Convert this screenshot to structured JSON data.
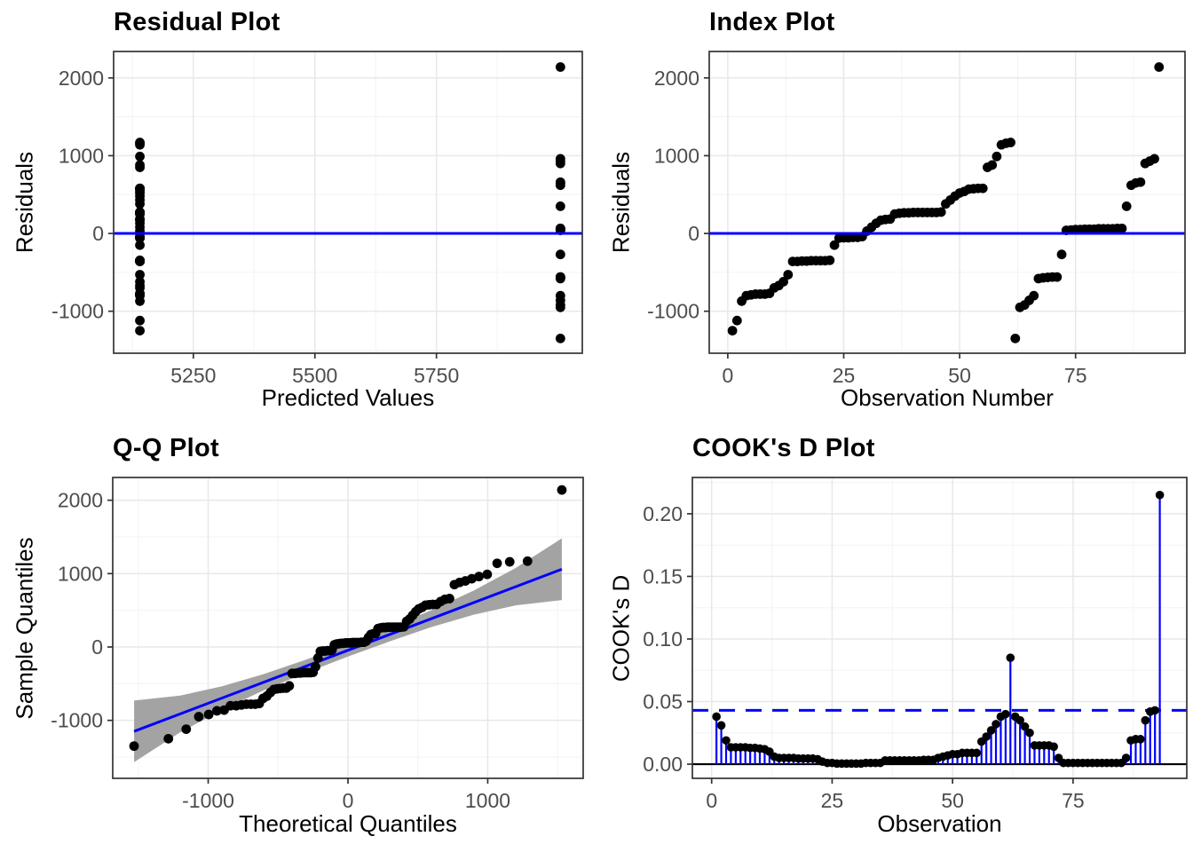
{
  "n_observations": 93,
  "colors": {
    "accent_blue": "#0000ff",
    "point_black": "#000000",
    "band_gray": "#a3a3a3",
    "grid_major": "#e8e8e8",
    "grid_minor": "#f4f4f4",
    "panel_border": "#333333",
    "tick_label": "#4d4d4d",
    "title_text": "#000000"
  },
  "residuals": [
    -1250,
    -1120,
    -870,
    -800,
    -790,
    -780,
    -780,
    -780,
    -770,
    -700,
    -670,
    -620,
    -530,
    -360,
    -360,
    -355,
    -355,
    -350,
    -350,
    -350,
    -350,
    -345,
    -150,
    -60,
    -55,
    -55,
    -50,
    -50,
    -40,
    30,
    80,
    130,
    170,
    180,
    185,
    250,
    260,
    265,
    265,
    270,
    270,
    270,
    270,
    270,
    270,
    275,
    380,
    430,
    480,
    520,
    540,
    570,
    575,
    580,
    580,
    850,
    880,
    990,
    1140,
    1160,
    1170,
    -1350,
    -950,
    -920,
    -860,
    -800,
    -580,
    -570,
    -565,
    -560,
    -560,
    -270,
    40,
    45,
    50,
    50,
    55,
    55,
    55,
    60,
    60,
    60,
    60,
    65,
    65,
    350,
    620,
    650,
    660,
    900,
    930,
    960,
    2140
  ],
  "cooks_d": [
    0.038,
    0.031,
    0.019,
    0.0135,
    0.0135,
    0.0135,
    0.0135,
    0.013,
    0.013,
    0.0125,
    0.012,
    0.01,
    0.006,
    0.005,
    0.005,
    0.005,
    0.005,
    0.0045,
    0.0045,
    0.0045,
    0.0045,
    0.004,
    0.002,
    0.001,
    0.001,
    0.0005,
    0.0005,
    0.0005,
    0.0005,
    0.0005,
    0.0005,
    0.001,
    0.001,
    0.001,
    0.001,
    0.003,
    0.003,
    0.003,
    0.003,
    0.003,
    0.003,
    0.003,
    0.003,
    0.0035,
    0.0035,
    0.0035,
    0.005,
    0.006,
    0.007,
    0.008,
    0.008,
    0.009,
    0.009,
    0.009,
    0.009,
    0.018,
    0.022,
    0.027,
    0.032,
    0.038,
    0.04,
    0.085,
    0.038,
    0.035,
    0.03,
    0.025,
    0.015,
    0.015,
    0.015,
    0.015,
    0.014,
    0.005,
    0.001,
    0.001,
    0.001,
    0.001,
    0.001,
    0.001,
    0.001,
    0.001,
    0.001,
    0.001,
    0.001,
    0.001,
    0.001,
    0.005,
    0.019,
    0.02,
    0.02,
    0.035,
    0.042,
    0.043,
    0.215
  ],
  "chart_data": [
    {
      "id": "residual_plot",
      "type": "scatter_fitted",
      "title": "Residual Plot",
      "xlabel": "Predicted Values",
      "ylabel": "Residuals",
      "xlim": [
        5086,
        6050
      ],
      "ylim": [
        -1540,
        2340
      ],
      "xticks": [
        5250,
        5500,
        5750
      ],
      "xtick_labels": [
        "5250",
        "5500",
        "5750"
      ],
      "yticks": [
        -1000,
        0,
        1000,
        2000
      ],
      "ytick_labels": [
        "-1000",
        "0",
        "1000",
        "2000"
      ],
      "xminor": [
        5125,
        5375,
        5625,
        5875
      ],
      "yminor": [
        -1500,
        -500,
        500,
        1500
      ],
      "hline": {
        "y": 0,
        "color": "#0000ff"
      },
      "fitted_groups": [
        {
          "x": 5140,
          "count": 61
        },
        {
          "x": 6005,
          "count": 32
        }
      ],
      "source": "residuals",
      "grid": true,
      "legend": "none"
    },
    {
      "id": "index_plot",
      "type": "index_scatter",
      "title": "Index Plot",
      "xlabel": "Observation Number",
      "ylabel": "Residuals",
      "xlim": [
        -4,
        98.6
      ],
      "ylim": [
        -1540,
        2340
      ],
      "xticks": [
        0,
        25,
        50,
        75
      ],
      "xtick_labels": [
        "0",
        "25",
        "50",
        "75"
      ],
      "yticks": [
        -1000,
        0,
        1000,
        2000
      ],
      "ytick_labels": [
        "-1000",
        "0",
        "1000",
        "2000"
      ],
      "xminor": [
        12.5,
        37.5,
        62.5,
        87.5
      ],
      "yminor": [
        -1500,
        -500,
        500,
        1500
      ],
      "hline": {
        "y": 0,
        "color": "#0000ff"
      },
      "source": "residuals",
      "grid": true,
      "legend": "none"
    },
    {
      "id": "qq_plot",
      "type": "qq",
      "title": "Q-Q Plot",
      "xlabel": "Theoretical Quantiles",
      "ylabel": "Sample Quantiles",
      "xlim": [
        -1683,
        1683
      ],
      "ylim": [
        -1790,
        2310
      ],
      "xticks": [
        -1000,
        0,
        1000
      ],
      "xtick_labels": [
        "-1000",
        "0",
        "1000"
      ],
      "yticks": [
        -1000,
        0,
        1000,
        2000
      ],
      "ytick_labels": [
        "-1000",
        "0",
        "1000",
        "2000"
      ],
      "xminor": [
        -1500,
        -500,
        500,
        1500
      ],
      "yminor": [
        -1500,
        -500,
        500,
        1500
      ],
      "theoretical_sd": 600,
      "line": {
        "x1": -1530,
        "y1": -1150,
        "x2": 1530,
        "y2": 1060,
        "color": "#0000ff"
      },
      "band": {
        "x": [
          -1530,
          -1200,
          -900,
          -600,
          -300,
          0,
          300,
          600,
          900,
          1200,
          1530
        ],
        "lower": [
          -1570,
          -1162,
          -855,
          -588,
          -352,
          -130,
          77,
          273,
          440,
          567,
          640
        ],
        "upper": [
          -730,
          -662,
          -535,
          -368,
          -172,
          40,
          267,
          503,
          770,
          1077,
          1480
        ],
        "color": "#a3a3a3"
      },
      "source": "residuals",
      "grid": true,
      "legend": "none"
    },
    {
      "id": "cooks_plot",
      "type": "stem",
      "title": "COOK's D Plot",
      "xlabel": "Observation",
      "ylabel": "COOK's D",
      "xlim": [
        -4,
        98.6
      ],
      "ylim": [
        -0.0113,
        0.229
      ],
      "xticks": [
        0,
        25,
        50,
        75
      ],
      "xtick_labels": [
        "0",
        "25",
        "50",
        "75"
      ],
      "yticks": [
        0,
        0.05,
        0.1,
        0.15,
        0.2
      ],
      "ytick_labels": [
        "0.00",
        "0.05",
        "0.10",
        "0.15",
        "0.20"
      ],
      "xminor": [
        12.5,
        37.5,
        62.5,
        87.5
      ],
      "yminor": [
        0.025,
        0.075,
        0.125,
        0.175,
        0.225
      ],
      "baseline": {
        "y": 0,
        "color": "#000000"
      },
      "threshold": {
        "y": 0.043,
        "color": "#0000ff",
        "style": "dashed"
      },
      "source": "cooks_d",
      "grid": true,
      "legend": "none"
    }
  ]
}
